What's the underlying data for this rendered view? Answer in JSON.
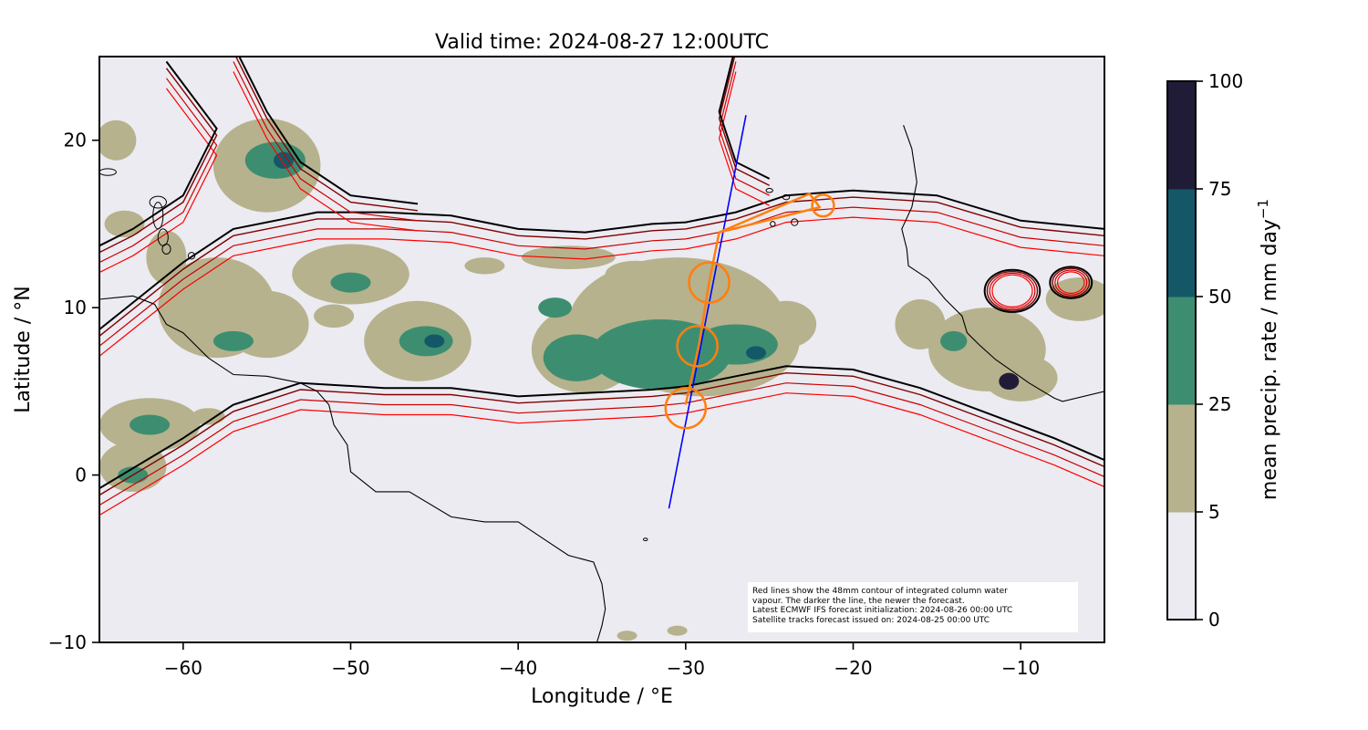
{
  "chart_data": {
    "type": "map",
    "title": "Valid time: 2024-08-27 12:00UTC",
    "xlabel": "Longitude / °E",
    "ylabel": "Latitude / °N",
    "xlim": [
      -65,
      -5
    ],
    "ylim": [
      -10,
      25
    ],
    "xticks": [
      -60,
      -50,
      -40,
      -30,
      -20,
      -10
    ],
    "yticks": [
      -10,
      0,
      10,
      20
    ],
    "xtick_labels": [
      "−60",
      "−50",
      "−40",
      "−30",
      "−20",
      "−10"
    ],
    "ytick_labels": [
      "−10",
      "0",
      "10",
      "20"
    ],
    "colorbar": {
      "label_text": "mean precip. rate / mm day",
      "label_sup": "−1",
      "levels": [
        0,
        5,
        25,
        50,
        75,
        100
      ],
      "tick_labels": [
        "0",
        "5",
        "25",
        "50",
        "75",
        "100"
      ],
      "colors": [
        "#ecebf1",
        "#b6b28d",
        "#3d8e70",
        "#145868",
        "#201c38"
      ]
    },
    "satellite_track": {
      "color": "#0000ff",
      "points": [
        [
          -26.4,
          21.5
        ],
        [
          -31,
          -2
        ]
      ]
    },
    "flight_track": {
      "color": "#ff7f0e",
      "points": [
        [
          -30.0,
          4.2
        ],
        [
          -29.2,
          7.8
        ],
        [
          -28.6,
          11.5
        ],
        [
          -28.0,
          14.5
        ],
        [
          -22.6,
          16.8
        ],
        [
          -22.0,
          16.0
        ],
        [
          -28.0,
          14.5
        ]
      ],
      "circles": [
        {
          "lon": -30.0,
          "lat": 4.0,
          "radius_deg": 1.2
        },
        {
          "lon": -29.3,
          "lat": 7.7,
          "radius_deg": 1.2
        },
        {
          "lon": -28.6,
          "lat": 11.5,
          "radius_deg": 1.2
        },
        {
          "lon": -21.8,
          "lat": 16.1,
          "radius_deg": 0.65
        }
      ]
    },
    "precip_cells": [
      {
        "lon": -55,
        "lat": 18.5,
        "rlon": 3.2,
        "rlat": 2.8,
        "level": 1
      },
      {
        "lon": -54.5,
        "lat": 18.8,
        "rlon": 1.8,
        "rlat": 1.1,
        "level": 2
      },
      {
        "lon": -54,
        "lat": 18.8,
        "rlon": 0.6,
        "rlat": 0.5,
        "level": 3
      },
      {
        "lon": -50,
        "lat": 12,
        "rlon": 3.5,
        "rlat": 1.8,
        "level": 1
      },
      {
        "lon": -50,
        "lat": 11.5,
        "rlon": 1.2,
        "rlat": 0.6,
        "level": 2
      },
      {
        "lon": -58,
        "lat": 10,
        "rlon": 3.5,
        "rlat": 3,
        "level": 1
      },
      {
        "lon": -55,
        "lat": 9,
        "rlon": 2.5,
        "rlat": 2,
        "level": 1
      },
      {
        "lon": -57,
        "lat": 8,
        "rlon": 1.2,
        "rlat": 0.6,
        "level": 2
      },
      {
        "lon": -46,
        "lat": 8,
        "rlon": 3.2,
        "rlat": 2.4,
        "level": 1
      },
      {
        "lon": -45.5,
        "lat": 8,
        "rlon": 1.6,
        "rlat": 0.9,
        "level": 2
      },
      {
        "lon": -45,
        "lat": 8,
        "rlon": 0.6,
        "rlat": 0.4,
        "level": 3
      },
      {
        "lon": -51,
        "lat": 9.5,
        "rlon": 1.2,
        "rlat": 0.7,
        "level": 1
      },
      {
        "lon": -36,
        "lat": 7.5,
        "rlon": 3.2,
        "rlat": 2.6,
        "level": 1
      },
      {
        "lon": -30.5,
        "lat": 9,
        "rlon": 6.5,
        "rlat": 4,
        "level": 1
      },
      {
        "lon": -29,
        "lat": 8,
        "rlon": 5.8,
        "rlat": 3.3,
        "level": 1
      },
      {
        "lon": -33,
        "lat": 12,
        "rlon": 1.8,
        "rlat": 0.8,
        "level": 1
      },
      {
        "lon": -24,
        "lat": 9,
        "rlon": 1.8,
        "rlat": 1.4,
        "level": 1
      },
      {
        "lon": -31.5,
        "lat": 7.2,
        "rlon": 4.2,
        "rlat": 2.1,
        "level": 2
      },
      {
        "lon": -36.5,
        "lat": 7,
        "rlon": 2,
        "rlat": 1.4,
        "level": 2
      },
      {
        "lon": -27,
        "lat": 7.8,
        "rlon": 2.5,
        "rlat": 1.2,
        "level": 2
      },
      {
        "lon": -25.8,
        "lat": 7.3,
        "rlon": 0.6,
        "rlat": 0.4,
        "level": 3
      },
      {
        "lon": -37.8,
        "lat": 10,
        "rlon": 1,
        "rlat": 0.6,
        "level": 2
      },
      {
        "lon": -12,
        "lat": 7.5,
        "rlon": 3.5,
        "rlat": 2.5,
        "level": 1
      },
      {
        "lon": -10,
        "lat": 5.8,
        "rlon": 2.2,
        "rlat": 1.4,
        "level": 1
      },
      {
        "lon": -16,
        "lat": 9,
        "rlon": 1.5,
        "rlat": 1.5,
        "level": 1
      },
      {
        "lon": -10.7,
        "lat": 5.6,
        "rlon": 0.6,
        "rlat": 0.5,
        "level": 4
      },
      {
        "lon": -14,
        "lat": 8,
        "rlon": 0.8,
        "rlat": 0.6,
        "level": 2
      },
      {
        "lon": -6.5,
        "lat": 10.5,
        "rlon": 2,
        "rlat": 1.3,
        "level": 1
      },
      {
        "lon": -62,
        "lat": 3,
        "rlon": 3,
        "rlat": 1.6,
        "level": 1
      },
      {
        "lon": -63,
        "lat": 0.5,
        "rlon": 2,
        "rlat": 1.5,
        "level": 1
      },
      {
        "lon": -62,
        "lat": 3,
        "rlon": 1.2,
        "rlat": 0.6,
        "level": 2
      },
      {
        "lon": -63,
        "lat": 0,
        "rlon": 0.9,
        "rlat": 0.5,
        "level": 2
      },
      {
        "lon": -58.5,
        "lat": 3.5,
        "rlon": 1,
        "rlat": 0.5,
        "level": 1
      },
      {
        "lon": -64,
        "lat": 20,
        "rlon": 1.2,
        "rlat": 1.2,
        "level": 1
      },
      {
        "lon": -63.5,
        "lat": 15,
        "rlon": 1.2,
        "rlat": 0.8,
        "level": 1
      },
      {
        "lon": -61,
        "lat": 13,
        "rlon": 1.2,
        "rlat": 1.6,
        "level": 1
      },
      {
        "lon": -37,
        "lat": 13,
        "rlon": 2.8,
        "rlat": 0.7,
        "level": 1
      },
      {
        "lon": -42,
        "lat": 12.5,
        "rlon": 1.2,
        "rlat": 0.5,
        "level": 1
      },
      {
        "lon": -30.5,
        "lat": -9.3,
        "rlon": 0.6,
        "rlat": 0.3,
        "level": 1
      },
      {
        "lon": -33.5,
        "lat": -9.6,
        "rlon": 0.6,
        "rlat": 0.3,
        "level": 1
      }
    ],
    "land_outlines": {
      "south_america": [
        [
          -80,
          10
        ],
        [
          -75,
          11
        ],
        [
          -72,
          12
        ],
        [
          -68,
          11
        ],
        [
          -65,
          10.5
        ],
        [
          -63,
          10.7
        ],
        [
          -61.7,
          10.2
        ],
        [
          -61,
          9
        ],
        [
          -60,
          8.5
        ],
        [
          -58.5,
          7
        ],
        [
          -57,
          6
        ],
        [
          -55,
          5.9
        ],
        [
          -53,
          5.5
        ],
        [
          -52,
          5
        ],
        [
          -51.3,
          4.2
        ],
        [
          -51,
          3
        ],
        [
          -50.2,
          1.8
        ],
        [
          -50,
          0.2
        ],
        [
          -48.5,
          -1
        ],
        [
          -46.5,
          -1
        ],
        [
          -44,
          -2.5
        ],
        [
          -42,
          -2.8
        ],
        [
          -40,
          -2.8
        ],
        [
          -38.5,
          -3.8
        ],
        [
          -37,
          -4.8
        ],
        [
          -35.5,
          -5.2
        ],
        [
          -35,
          -6.5
        ],
        [
          -34.8,
          -8
        ],
        [
          -35,
          -9
        ],
        [
          -35.3,
          -10
        ]
      ],
      "africa": [
        [
          -17,
          20.9
        ],
        [
          -16.5,
          19.5
        ],
        [
          -16.2,
          17.5
        ],
        [
          -16.5,
          16
        ],
        [
          -17.1,
          14.7
        ],
        [
          -16.8,
          13.5
        ],
        [
          -16.7,
          12.5
        ],
        [
          -15.5,
          11.7
        ],
        [
          -14.5,
          10.5
        ],
        [
          -13.5,
          9.5
        ],
        [
          -13.2,
          8.5
        ],
        [
          -12.5,
          7.8
        ],
        [
          -11.5,
          6.9
        ],
        [
          -10.5,
          6.2
        ],
        [
          -9.5,
          5.5
        ],
        [
          -8,
          4.6
        ],
        [
          -7.5,
          4.4
        ],
        [
          -5,
          5
        ]
      ]
    },
    "islands": [
      [
        -61.5,
        15.5,
        0.3,
        0.8
      ],
      [
        -61.2,
        14.2,
        0.3,
        0.5
      ],
      [
        -61,
        13.5,
        0.25,
        0.3
      ],
      [
        -59.5,
        13.1,
        0.2,
        0.2
      ],
      [
        -61.5,
        16.3,
        0.5,
        0.35
      ],
      [
        -64.5,
        18.1,
        0.5,
        0.2
      ],
      [
        -24,
        16.6,
        0.2,
        0.15
      ],
      [
        -24.8,
        15,
        0.15,
        0.15
      ],
      [
        -23.5,
        15.1,
        0.2,
        0.2
      ],
      [
        -25,
        17,
        0.2,
        0.12
      ],
      [
        -32.4,
        -3.85,
        0.12,
        0.08
      ]
    ],
    "annotation_lines": [
      "Red lines show the 48mm contour of integrated column water",
      "vapour. The darker the line, the newer the forecast.",
      "Latest ECMWF IFS forecast initialization: 2024-08-26 00:00 UTC",
      "Satellite tracks forecast issued on: 2024-08-25 00:00 UTC"
    ]
  }
}
